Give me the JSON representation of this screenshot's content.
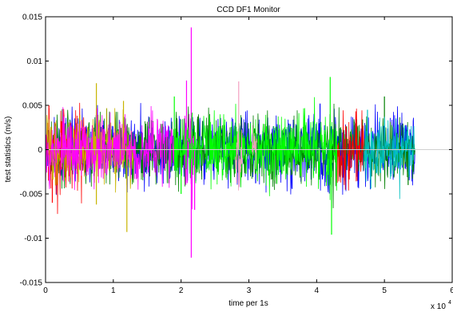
{
  "chart_data": {
    "type": "line",
    "title": "CCD DF1 Monitor",
    "xlabel": "time per 1s",
    "ylabel": "test statistics (m/s)",
    "x_exponent_label": "x 10",
    "x_exponent_power": "4",
    "xlim": [
      0,
      6
    ],
    "ylim": [
      -0.015,
      0.015
    ],
    "xticks": [
      0,
      1,
      2,
      3,
      4,
      5,
      6
    ],
    "xtick_labels": [
      "0",
      "1",
      "2",
      "3",
      "4",
      "5",
      "6"
    ],
    "yticks": [
      -0.015,
      -0.01,
      -0.005,
      0,
      0.005,
      0.01,
      0.015
    ],
    "ytick_labels": [
      "-0.015",
      "-0.01",
      "-0.005",
      "0",
      "0.005",
      "0.01",
      "0.015"
    ],
    "grid": false,
    "series": [
      {
        "color": "#0000ff",
        "segments": [
          {
            "x": [
              0.0,
              5.45
            ],
            "amplitude": 0.0035,
            "seed": 11
          }
        ],
        "peaks": [
          [
            4.05,
            0.0052
          ],
          [
            3.1,
            -0.0038
          ]
        ]
      },
      {
        "color": "#008000",
        "segments": [
          {
            "x": [
              0.0,
              5.45
            ],
            "amplitude": 0.0035,
            "seed": 23
          }
        ],
        "peaks": [
          [
            5.0,
            0.006
          ],
          [
            5.35,
            -0.004
          ]
        ]
      },
      {
        "color": "#ff0000",
        "segments": [
          {
            "x": [
              0.0,
              0.6
            ],
            "amplitude": 0.0042,
            "seed": 31
          },
          {
            "x": [
              4.3,
              4.7
            ],
            "amplitude": 0.004,
            "seed": 37
          }
        ],
        "peaks": [
          [
            0.1,
            -0.006
          ],
          [
            0.05,
            0.005
          ]
        ]
      },
      {
        "color": "#c8b400",
        "segments": [
          {
            "x": [
              0.0,
              1.3
            ],
            "amplitude": 0.0035,
            "seed": 41
          }
        ],
        "peaks": [
          [
            0.75,
            0.0075
          ],
          [
            1.2,
            -0.0093
          ],
          [
            1.15,
            0.0055
          ],
          [
            0.75,
            -0.0062
          ]
        ]
      },
      {
        "color": "#ff00ff",
        "segments": [
          {
            "x": [
              0.0,
              1.9
            ],
            "amplitude": 0.0036,
            "seed": 53
          },
          {
            "x": [
              2.05,
              2.2
            ],
            "amplitude": 0.005,
            "seed": 59
          }
        ],
        "peaks": [
          [
            2.15,
            0.0138
          ],
          [
            2.15,
            -0.0122
          ],
          [
            2.08,
            0.0078
          ],
          [
            2.2,
            -0.0068
          ]
        ]
      },
      {
        "color": "#00ff00",
        "segments": [
          {
            "x": [
              1.9,
              4.3
            ],
            "amplitude": 0.0038,
            "seed": 61
          }
        ],
        "peaks": [
          [
            4.2,
            0.0082
          ],
          [
            4.22,
            -0.0096
          ],
          [
            1.9,
            0.006
          ],
          [
            2.0,
            -0.005
          ]
        ]
      },
      {
        "color": "#f4a0c0",
        "segments": [
          {
            "x": [
              2.8,
              2.9
            ],
            "amplitude": 0.004,
            "seed": 67
          },
          {
            "x": [
              3.05,
              3.12
            ],
            "amplitude": 0.003,
            "seed": 71
          }
        ],
        "peaks": [
          [
            2.85,
            0.0077
          ],
          [
            2.82,
            -0.0038
          ]
        ]
      },
      {
        "color": "#00c0c0",
        "segments": [
          {
            "x": [
              4.7,
              5.45
            ],
            "amplitude": 0.0033,
            "seed": 79
          }
        ],
        "peaks": [
          [
            4.75,
            0.0045
          ],
          [
            4.8,
            -0.0044
          ]
        ]
      }
    ]
  }
}
